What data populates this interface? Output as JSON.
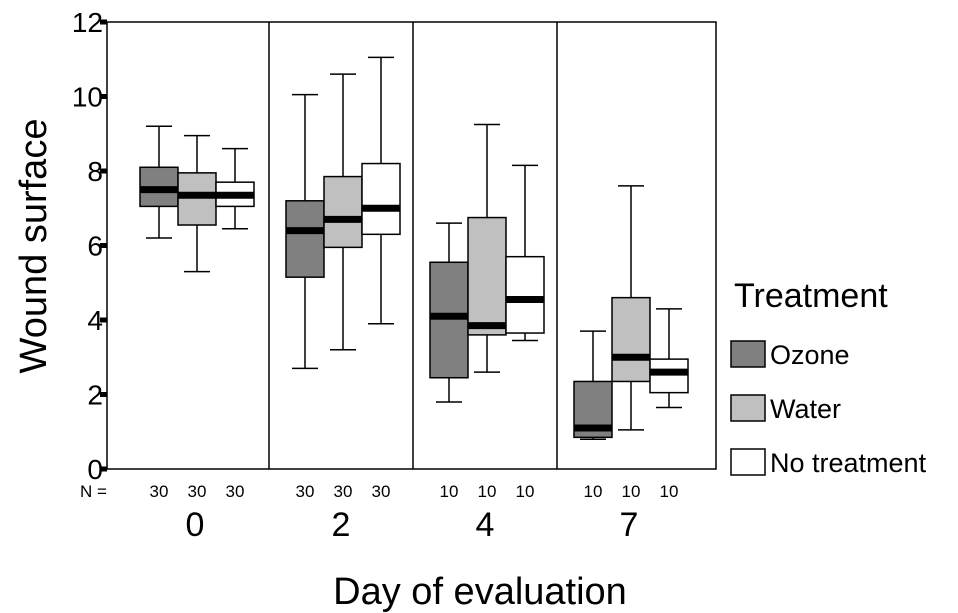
{
  "chart_data": {
    "type": "box",
    "title": "",
    "xlabel": "Day of evaluation",
    "ylabel": "Wound surface",
    "ylim": [
      0,
      12
    ],
    "yticks": [
      0,
      2,
      4,
      6,
      8,
      10,
      12
    ],
    "categories": [
      "0",
      "2",
      "4",
      "7"
    ],
    "n_label": "N =",
    "n_values": [
      [
        30,
        30,
        30
      ],
      [
        30,
        30,
        30
      ],
      [
        10,
        10,
        10
      ],
      [
        10,
        10,
        10
      ]
    ],
    "legend": {
      "title": "Treatment",
      "placement": "right"
    },
    "series": [
      {
        "name": "Ozone",
        "color": "#808080",
        "boxes": [
          {
            "min": 6.2,
            "q1": 7.05,
            "median": 7.5,
            "q3": 8.1,
            "max": 9.2
          },
          {
            "min": 2.7,
            "q1": 5.15,
            "median": 6.4,
            "q3": 7.2,
            "max": 10.05
          },
          {
            "min": 1.8,
            "q1": 2.45,
            "median": 4.1,
            "q3": 5.55,
            "max": 6.6
          },
          {
            "min": 0.8,
            "q1": 0.85,
            "median": 1.1,
            "q3": 2.35,
            "max": 3.7
          }
        ]
      },
      {
        "name": "Water",
        "color": "#c0c0c0",
        "boxes": [
          {
            "min": 5.3,
            "q1": 6.55,
            "median": 7.35,
            "q3": 7.95,
            "max": 8.95
          },
          {
            "min": 3.2,
            "q1": 5.95,
            "median": 6.7,
            "q3": 7.85,
            "max": 10.6
          },
          {
            "min": 2.6,
            "q1": 3.6,
            "median": 3.85,
            "q3": 6.75,
            "max": 9.25
          },
          {
            "min": 1.05,
            "q1": 2.35,
            "median": 3.0,
            "q3": 4.6,
            "max": 7.6
          }
        ]
      },
      {
        "name": "No treatment",
        "color": "#ffffff",
        "boxes": [
          {
            "min": 6.45,
            "q1": 7.05,
            "median": 7.35,
            "q3": 7.7,
            "max": 8.6
          },
          {
            "min": 3.9,
            "q1": 6.3,
            "median": 7.0,
            "q3": 8.2,
            "max": 11.05
          },
          {
            "min": 3.45,
            "q1": 3.65,
            "median": 4.55,
            "q3": 5.7,
            "max": 8.15
          },
          {
            "min": 1.65,
            "q1": 2.05,
            "median": 2.6,
            "q3": 2.95,
            "max": 4.3
          }
        ]
      }
    ]
  }
}
